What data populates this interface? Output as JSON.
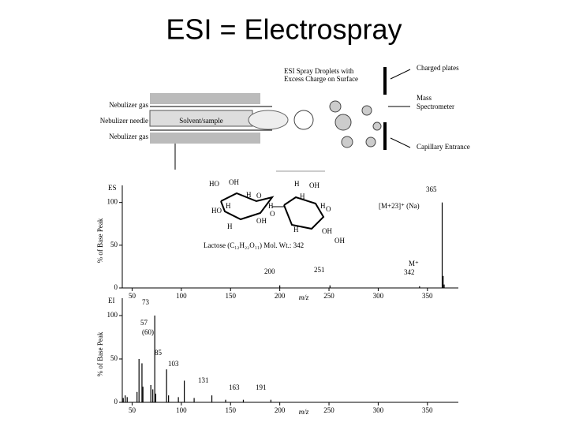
{
  "title": "ESI = Electrospray",
  "diagram": {
    "labels": [
      "Nebulizer gas",
      "Nebulizer needle",
      "Nebulizer gas",
      "Solvent/sample",
      "ESI Spray Droplets with",
      "Excess Charge on Surface",
      "Charged plates",
      "Mass",
      "Spectrometer",
      "Capillary Entrance"
    ]
  },
  "structure": {
    "atoms": [
      "HO",
      "OH",
      "H",
      "O",
      "HO",
      "H",
      "H",
      "OH",
      "H",
      "O",
      "H",
      "OH",
      "H",
      "O",
      "H",
      "H",
      "OH",
      "OH"
    ],
    "caption": "Lactose (C₁₂H₂₂O₁₁) Mol. Wt.: 342"
  },
  "chart_data": [
    {
      "type": "bar",
      "title": "ES",
      "x_label": "m/z",
      "y_label": "% of Base Peak",
      "x": [
        200,
        251,
        342,
        365,
        366,
        367
      ],
      "values": [
        3,
        3,
        2,
        100,
        14,
        4
      ],
      "color": "#000000",
      "xlim": [
        40,
        375
      ],
      "ylim": [
        0,
        120
      ],
      "xticks": [
        50,
        100,
        150,
        200,
        250,
        300,
        350
      ],
      "yticks": [
        0,
        50,
        100
      ],
      "annotations": [
        {
          "label": "365",
          "x": 365
        },
        {
          "label": "[M+23]⁺ (Na)",
          "x": 365
        },
        {
          "label": "M⁺",
          "x": 342
        },
        {
          "label": "342",
          "x": 342
        },
        {
          "label": "200",
          "x": 200
        },
        {
          "label": "251",
          "x": 251
        }
      ]
    },
    {
      "type": "bar",
      "title": "EI",
      "x_label": "m/z",
      "y_label": "% of Base Peak",
      "x": [
        41,
        43,
        45,
        55,
        57,
        60,
        61,
        69,
        71,
        73,
        74,
        85,
        87,
        97,
        103,
        113,
        131,
        145,
        163,
        191
      ],
      "values": [
        5,
        8,
        6,
        12,
        50,
        45,
        18,
        20,
        15,
        100,
        10,
        38,
        8,
        6,
        25,
        5,
        8,
        3,
        3,
        3
      ],
      "color": "#000000",
      "xlim": [
        40,
        375
      ],
      "ylim": [
        0,
        120
      ],
      "xticks": [
        50,
        100,
        150,
        200,
        250,
        300,
        350
      ],
      "yticks": [
        0,
        50,
        100
      ],
      "annotations": [
        {
          "label": "73",
          "x": 73
        },
        {
          "label": "57",
          "x": 57
        },
        {
          "label": "(60)",
          "x": 60
        },
        {
          "label": "85",
          "x": 85
        },
        {
          "label": "103",
          "x": 103
        },
        {
          "label": "131",
          "x": 131
        },
        {
          "label": "163",
          "x": 163
        },
        {
          "label": "191",
          "x": 191
        }
      ]
    }
  ]
}
